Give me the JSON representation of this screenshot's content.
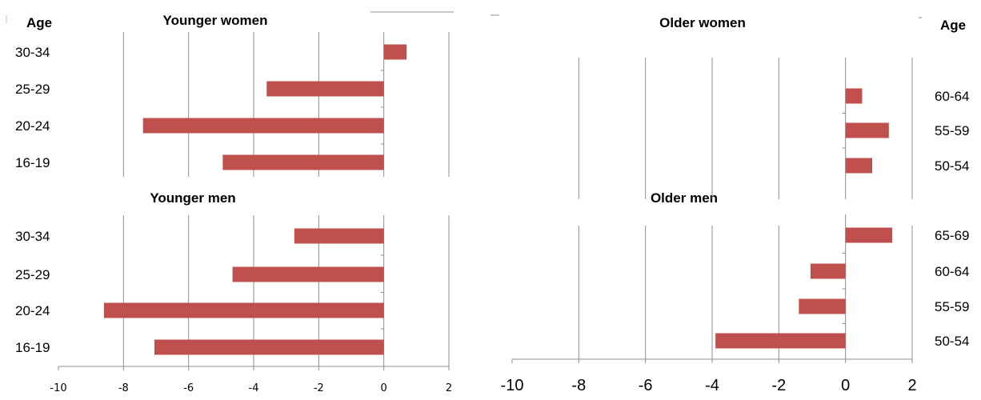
{
  "colors": {
    "bar": "#c0504d",
    "grid": "#8c8c8c",
    "axis": "#8c8c8c"
  },
  "chart_data": [
    {
      "type": "bar",
      "title": "Younger women",
      "ylabel": "Age",
      "categories": [
        "16-19",
        "20-24",
        "25-29",
        "30-34"
      ],
      "values": [
        -4.95,
        -7.4,
        -3.6,
        0.7
      ],
      "xlim": [
        -10,
        2
      ],
      "xticks": [
        -10,
        -8,
        -6,
        -4,
        -2,
        0,
        2
      ],
      "grid": true
    },
    {
      "type": "bar",
      "title": "Younger men",
      "categories": [
        "16-19",
        "20-24",
        "25-29",
        "30-34"
      ],
      "values": [
        -7.05,
        -8.6,
        -4.65,
        -2.75
      ],
      "xlim": [
        -10,
        2
      ],
      "xticks": [
        -10,
        -8,
        -6,
        -4,
        -2,
        0,
        2
      ],
      "grid": true
    },
    {
      "type": "bar",
      "title": "Older women",
      "ylabel": "Age",
      "categories": [
        "50-54",
        "55-59",
        "60-64"
      ],
      "values": [
        0.8,
        1.3,
        0.5
      ],
      "xlim": [
        -10,
        2
      ],
      "xticks": [
        -10,
        -8,
        -6,
        -4,
        -2,
        0,
        2
      ],
      "grid": true
    },
    {
      "type": "bar",
      "title": "Older men",
      "categories": [
        "50-54",
        "55-59",
        "60-64",
        "65-69"
      ],
      "values": [
        -3.9,
        -1.4,
        -1.05,
        1.4
      ],
      "xlim": [
        -10,
        2
      ],
      "xticks": [
        -10,
        -8,
        -6,
        -4,
        -2,
        0,
        2
      ],
      "grid": true
    }
  ]
}
